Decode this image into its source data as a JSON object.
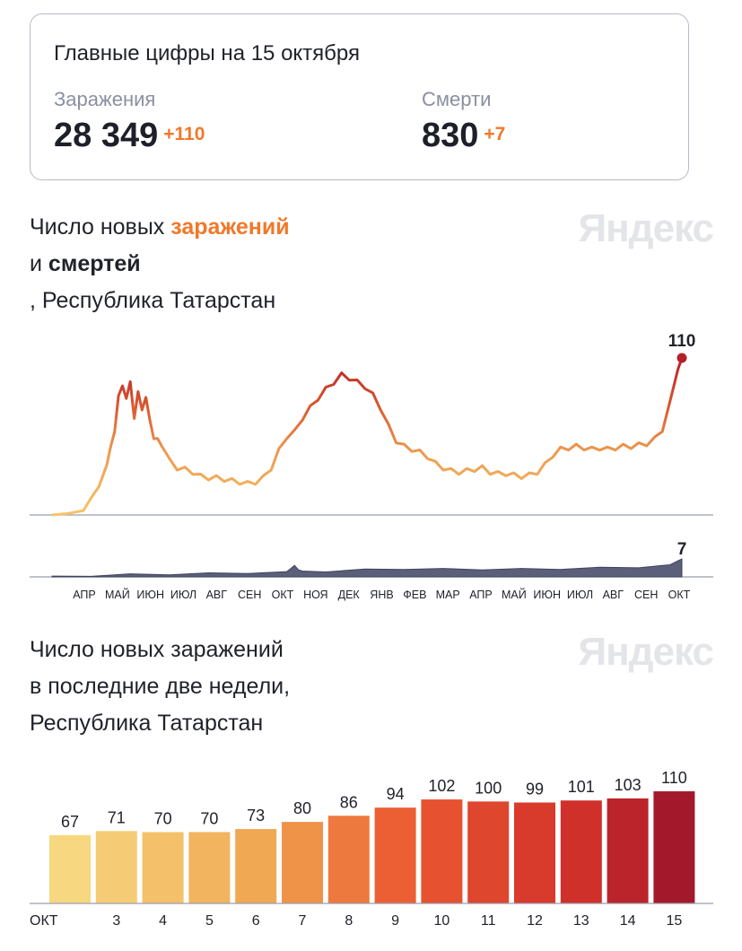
{
  "summary": {
    "title": "Главные цифры на 15 октября",
    "infections": {
      "label": "Заражения",
      "value": "28 349",
      "delta": "+110"
    },
    "deaths": {
      "label": "Смерти",
      "value": "830",
      "delta": "+7"
    }
  },
  "colors": {
    "accent": "#f2782a",
    "deaths_fill": "#5b5f79",
    "low": "#f7d880",
    "high": "#a3192b"
  },
  "chart_data": [
    {
      "type": "line",
      "title_parts": [
        "Число новых ",
        "заражений",
        "и ",
        "смертей",
        ", Республика Татарстан"
      ],
      "watermark": "Яндекс",
      "month_ticks": [
        "АПР",
        "МАЙ",
        "ИЮН",
        "ИЮЛ",
        "АВГ",
        "СЕН",
        "ОКТ",
        "НОЯ",
        "ДЕК",
        "ЯНВ",
        "ФЕВ",
        "МАР",
        "АПР",
        "МАЙ",
        "ИЮН",
        "ИЮЛ",
        "АВГ",
        "СЕН",
        "ОКТ"
      ],
      "series": [
        {
          "name": "заражения",
          "x": [
            0,
            2,
            4,
            5,
            6,
            7,
            7.5,
            8,
            8.5,
            9,
            9.5,
            10,
            10.5,
            11,
            11.5,
            12,
            12.5,
            13,
            13.5,
            14,
            15,
            16,
            17,
            18,
            19,
            20,
            21,
            22,
            23,
            24,
            25,
            26,
            27,
            28,
            29,
            30,
            31,
            32,
            33,
            34,
            35,
            36,
            37,
            38,
            39,
            40,
            41,
            42,
            43,
            44,
            45,
            46,
            47,
            48,
            49,
            50,
            51,
            52,
            53,
            54,
            55,
            56,
            57,
            58,
            59,
            60,
            61,
            62,
            63,
            64,
            65,
            66,
            67,
            68,
            69,
            70,
            71,
            72,
            73,
            74,
            75,
            76,
            77,
            78,
            79,
            80,
            80.5
          ],
          "values": [
            0,
            1,
            3,
            12,
            20,
            35,
            48,
            60,
            82,
            92,
            80,
            95,
            66,
            88,
            72,
            84,
            65,
            55,
            52,
            50,
            38,
            33,
            32,
            30,
            27,
            26,
            26,
            25,
            24,
            23,
            22,
            23,
            26,
            33,
            45,
            55,
            58,
            68,
            75,
            82,
            88,
            93,
            98,
            96,
            93,
            90,
            84,
            75,
            62,
            52,
            48,
            46,
            44,
            41,
            36,
            33,
            31,
            30,
            31,
            32,
            33,
            30,
            29,
            29,
            28,
            27,
            28,
            30,
            35,
            42,
            46,
            47,
            48,
            47,
            46,
            47,
            46,
            47,
            48,
            48,
            49,
            50,
            53,
            60,
            80,
            102,
            110
          ],
          "peak_label": "110"
        },
        {
          "name": "смерти",
          "x": [
            0,
            5,
            10,
            15,
            20,
            25,
            30,
            30.5,
            31,
            31.5,
            32,
            35,
            40,
            45,
            50,
            55,
            60,
            65,
            70,
            75,
            78,
            79,
            80,
            80.5
          ],
          "values": [
            0.3,
            0.5,
            0.9,
            1.1,
            1.3,
            1.6,
            1.8,
            3.5,
            4.2,
            3.0,
            2.0,
            2.2,
            2.8,
            3.2,
            3.0,
            3.0,
            3.0,
            3.2,
            3.5,
            3.8,
            4.2,
            5.0,
            6.0,
            7.0
          ],
          "peak_label": "7"
        }
      ]
    },
    {
      "type": "bar",
      "title_lines": [
        "Число новых заражений",
        "в последние две недели,",
        "Республика Татарстан"
      ],
      "watermark": "Яндекс",
      "categories": [
        "ОКТ",
        "3",
        "4",
        "5",
        "6",
        "7",
        "8",
        "9",
        "10",
        "11",
        "12",
        "13",
        "14",
        "15"
      ],
      "values": [
        67,
        71,
        70,
        70,
        73,
        80,
        86,
        94,
        102,
        100,
        99,
        101,
        103,
        110
      ],
      "weekend_categories": [
        "3",
        "9",
        "10"
      ]
    }
  ]
}
